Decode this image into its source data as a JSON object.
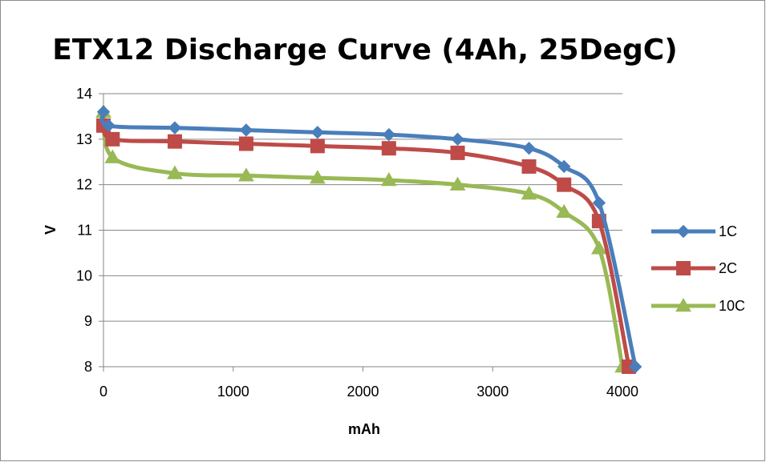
{
  "chart_data": {
    "type": "line",
    "title": "ETX12 Discharge Curve (4Ah, 25DegC)",
    "xlabel": "mAh",
    "ylabel": "V",
    "xlim": [
      0,
      4000
    ],
    "ylim": [
      8,
      14
    ],
    "xticks": [
      0,
      1000,
      2000,
      3000,
      4000
    ],
    "yticks": [
      8,
      9,
      10,
      11,
      12,
      13,
      14
    ],
    "grid": "horizontal",
    "legend": "right",
    "series": [
      {
        "name": "1C",
        "color": "#4a7ebb",
        "marker": "diamond",
        "x": [
          0,
          40,
          550,
          1100,
          1650,
          2200,
          2730,
          3280,
          3550,
          3820,
          4100
        ],
        "y": [
          13.6,
          13.3,
          13.25,
          13.2,
          13.15,
          13.1,
          13.0,
          12.8,
          12.4,
          11.6,
          8.0
        ]
      },
      {
        "name": "2C",
        "color": "#be4b48",
        "marker": "square",
        "x": [
          0,
          70,
          550,
          1100,
          1650,
          2200,
          2730,
          3280,
          3550,
          3820,
          4050
        ],
        "y": [
          13.3,
          13.0,
          12.95,
          12.9,
          12.85,
          12.8,
          12.7,
          12.4,
          12.0,
          11.2,
          8.0
        ]
      },
      {
        "name": "10C",
        "color": "#98b954",
        "marker": "triangle",
        "x": [
          0,
          70,
          550,
          1100,
          1650,
          2200,
          2730,
          3280,
          3550,
          3820,
          4000
        ],
        "y": [
          13.6,
          12.6,
          12.25,
          12.2,
          12.15,
          12.1,
          12.0,
          11.8,
          11.4,
          10.6,
          8.0
        ]
      }
    ]
  }
}
